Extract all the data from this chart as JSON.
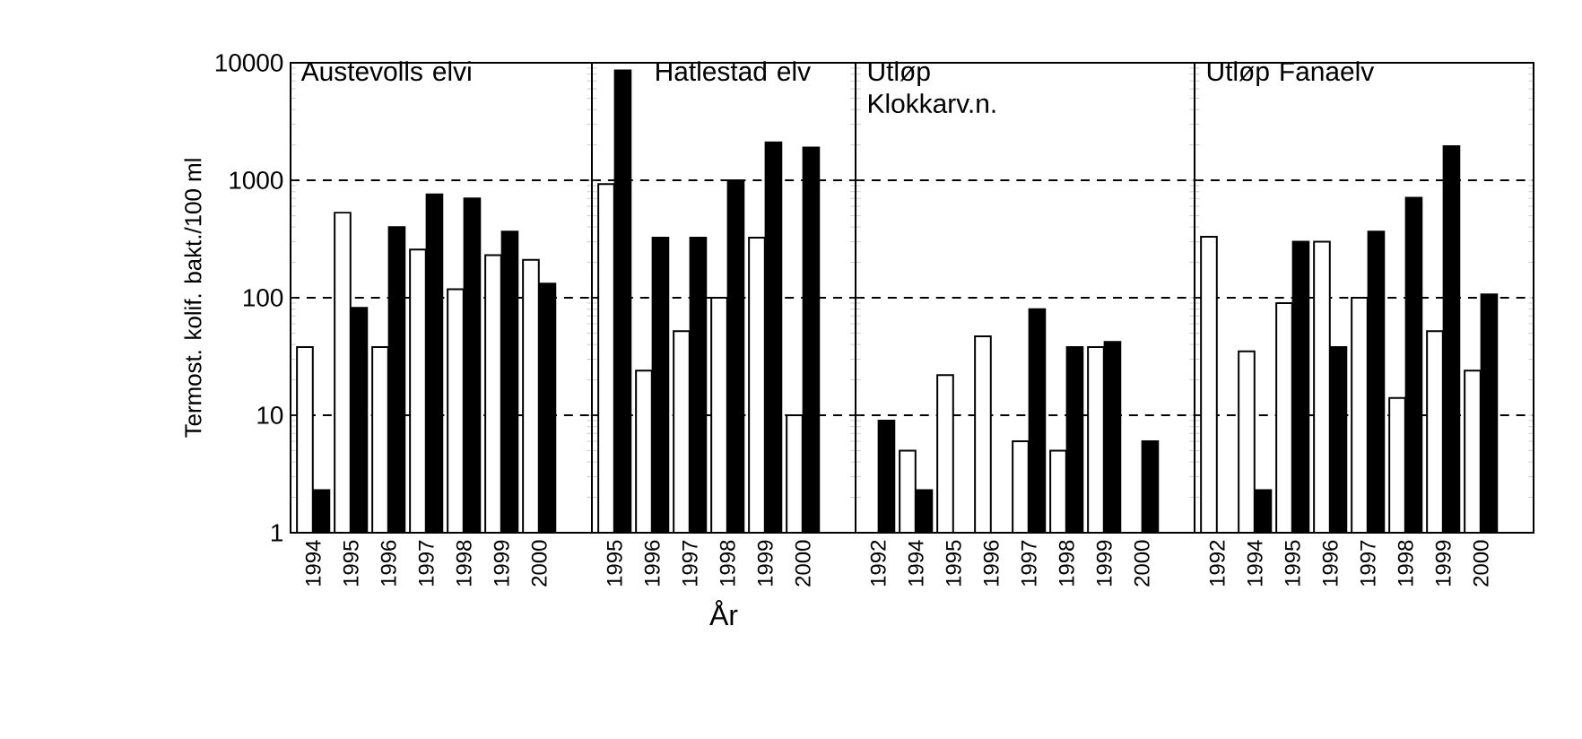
{
  "chart_data": [
    {
      "type": "bar",
      "title": "Austevolls elvi",
      "ylabel": "Termost. kolif. bakt./100 ml",
      "categories": [
        "1994",
        "1995",
        "1996",
        "1997",
        "1998",
        "1999",
        "2000"
      ],
      "series": [
        {
          "color": "#ffffff",
          "values": [
            38,
            530,
            38,
            257,
            118,
            230,
            210
          ]
        },
        {
          "color": "#000000",
          "values": [
            2.3,
            82,
            400,
            760,
            700,
            365,
            132
          ]
        }
      ],
      "ylim": [
        1,
        10000
      ],
      "yticks": [
        1,
        10,
        100,
        1000,
        10000
      ],
      "log": "y",
      "grid": "y"
    },
    {
      "type": "bar",
      "title": "Hatlestad elv",
      "xlabel": "År",
      "categories": [
        "1995",
        "1996",
        "1997",
        "1998",
        "1999",
        "2000"
      ],
      "series": [
        {
          "color": "#ffffff",
          "values": [
            930,
            24,
            52,
            100,
            325,
            10
          ]
        },
        {
          "color": "#000000",
          "values": [
            8600,
            325,
            325,
            1000,
            2100,
            1900
          ]
        }
      ],
      "ylim": [
        1,
        10000
      ],
      "yticks": [
        1,
        10,
        100,
        1000,
        10000
      ],
      "log": "y",
      "grid": "y",
      "tick_labels": "x"
    },
    {
      "type": "bar",
      "title": "Utløp Klokkarv.n.",
      "categories": [
        "1992",
        "1994",
        "1995",
        "1996",
        "1997",
        "1998",
        "1999",
        "2000"
      ],
      "series": [
        {
          "color": "#ffffff",
          "values": [
            null,
            5,
            22,
            47,
            6,
            5,
            38,
            null
          ]
        },
        {
          "color": "#000000",
          "values": [
            9,
            2.3,
            null,
            null,
            80,
            38,
            42,
            6
          ]
        }
      ],
      "ylim": [
        1,
        10000
      ],
      "yticks": [
        1,
        10,
        100,
        1000,
        10000
      ],
      "log": "y",
      "grid": "y",
      "tick_labels": "x"
    },
    {
      "type": "bar",
      "title": "Utløp Fanaelv",
      "categories": [
        "1992",
        "1994",
        "1995",
        "1996",
        "1997",
        "1998",
        "1999",
        "2000"
      ],
      "series": [
        {
          "color": "#ffffff",
          "values": [
            330,
            35,
            90,
            300,
            100,
            14,
            52,
            24
          ]
        },
        {
          "color": "#000000",
          "values": [
            null,
            2.3,
            300,
            38,
            365,
            710,
            1950,
            107
          ]
        }
      ],
      "ylim": [
        1,
        10000
      ],
      "yticks": [
        1,
        10,
        100,
        1000,
        10000
      ],
      "log": "y",
      "grid": "y",
      "tick_labels": "x"
    }
  ]
}
